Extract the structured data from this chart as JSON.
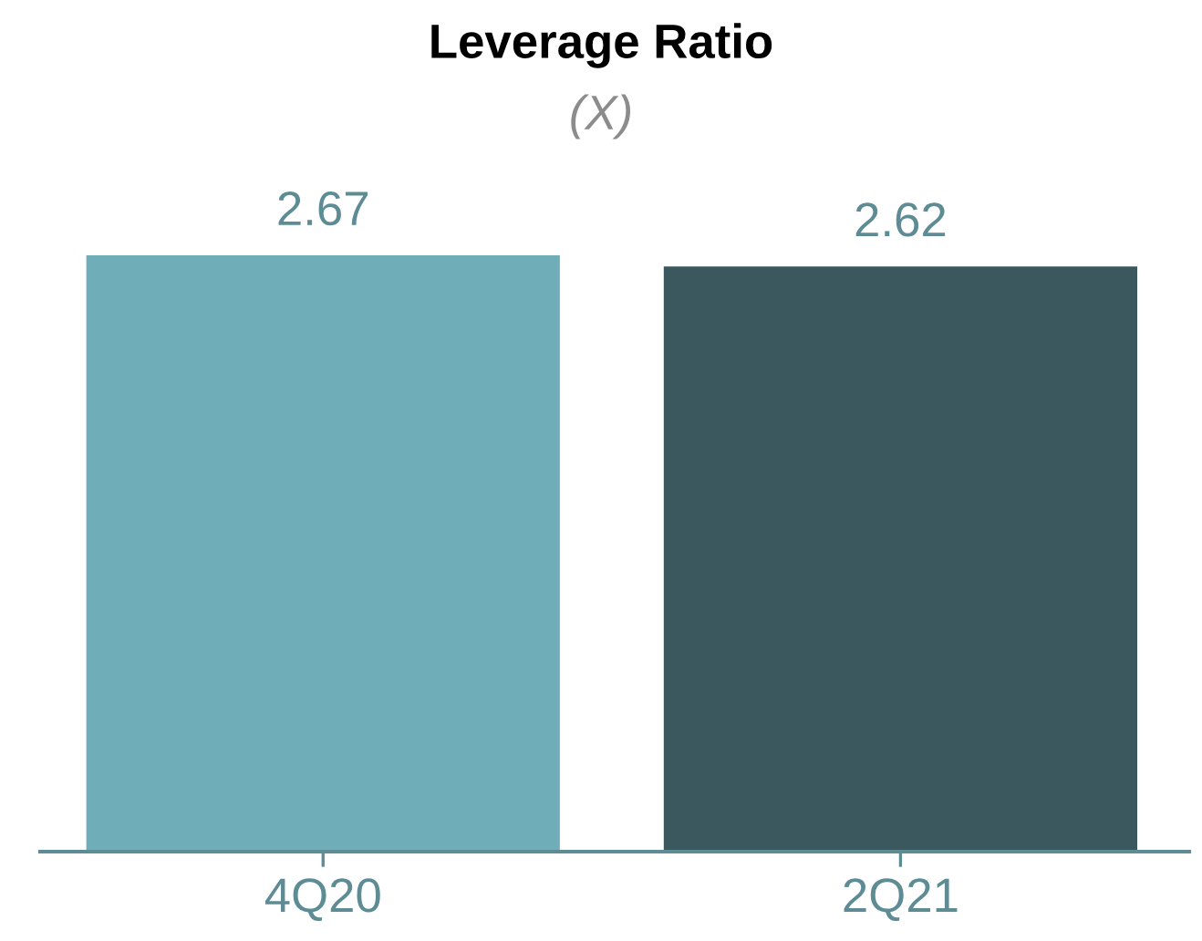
{
  "chart_data": {
    "type": "bar",
    "title": "Leverage Ratio",
    "subtitle": "(X)",
    "categories": [
      "4Q20",
      "2Q21"
    ],
    "values": [
      2.67,
      2.62
    ],
    "colors": [
      "#6fadb8",
      "#3a585d"
    ],
    "data_labels": true,
    "grid": false,
    "legend": false
  }
}
